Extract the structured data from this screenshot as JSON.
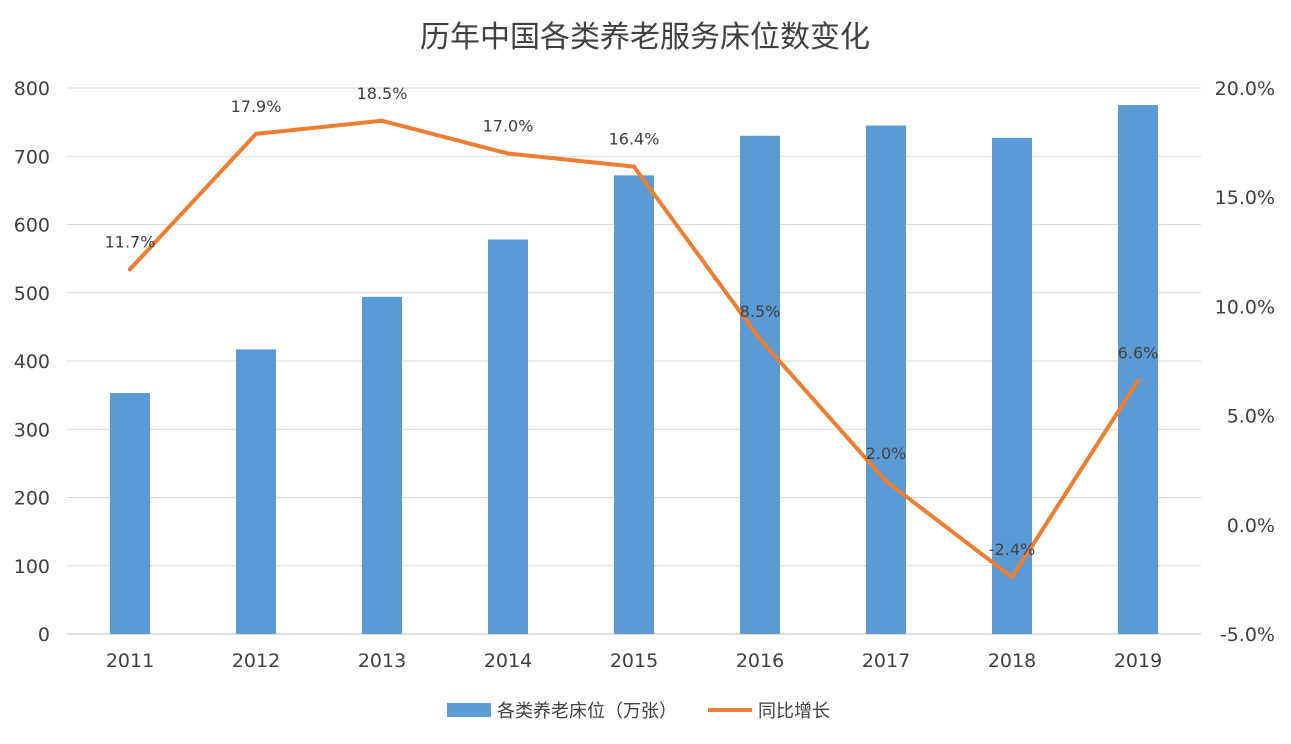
{
  "chart_data": {
    "type": "bar",
    "title": "历年中国各类养老服务床位数变化",
    "categories": [
      "2011",
      "2012",
      "2013",
      "2014",
      "2015",
      "2016",
      "2017",
      "2018",
      "2019"
    ],
    "series": [
      {
        "name": "各类养老床位（万张）",
        "type": "bar",
        "axis": "left",
        "color": "#5B9BD5",
        "values": [
          353,
          417,
          494,
          578,
          672,
          730,
          745,
          727,
          775
        ]
      },
      {
        "name": "同比增长",
        "type": "line",
        "axis": "right",
        "color": "#ED7D31",
        "values": [
          11.7,
          17.9,
          18.5,
          17.0,
          16.4,
          8.5,
          2.0,
          -2.4,
          6.6
        ],
        "labels": [
          "11.7%",
          "17.9%",
          "18.5%",
          "17.0%",
          "16.4%",
          "8.5%",
          "2.0%",
          "-2.4%",
          "6.6%"
        ]
      }
    ],
    "y_left": {
      "min": 0,
      "max": 800,
      "ticks": [
        "0",
        "100",
        "200",
        "300",
        "400",
        "500",
        "600",
        "700",
        "800"
      ]
    },
    "y_right": {
      "min": -5,
      "max": 20,
      "ticks": [
        "-5.0%",
        "0.0%",
        "5.0%",
        "10.0%",
        "15.0%",
        "20.0%"
      ]
    },
    "grid": true,
    "legend": "bottom"
  }
}
